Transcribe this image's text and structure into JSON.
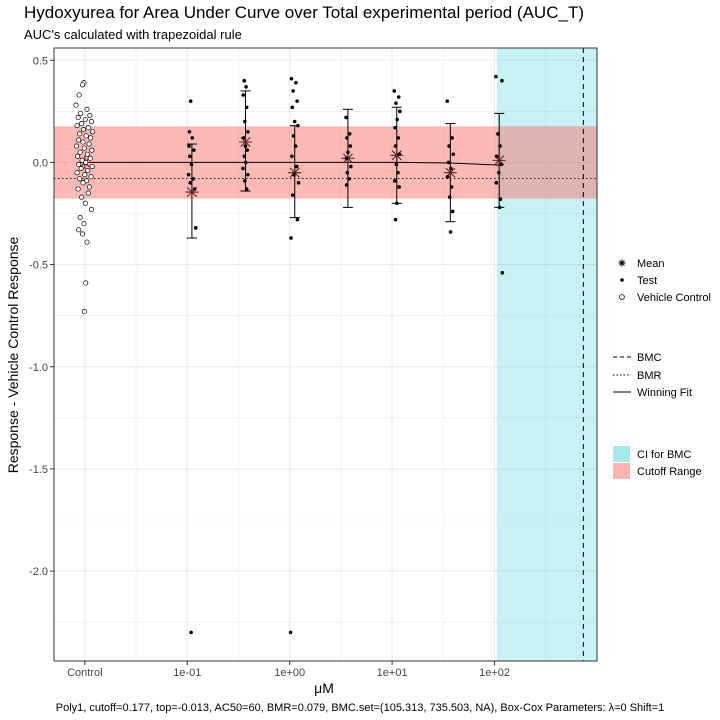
{
  "chart_data": {
    "type": "scatter",
    "title": "Hydoxyurea for Area Under Curve over Total experimental period (AUC_T)",
    "subtitle": "AUC's calculated with trapezoidal rule",
    "xlabel": "μM",
    "ylabel": "Response - Vehicle Control Response",
    "x_scale": "log",
    "x_ticks": [
      "Control",
      "1e-01",
      "1e+00",
      "1e+01",
      "1e+02"
    ],
    "x_tick_values": [
      0.01,
      0.1,
      1,
      10,
      100
    ],
    "xlim": [
      0.005,
      1000
    ],
    "y_ticks": [
      "0.5",
      "0.0",
      "-0.5",
      "-1.0",
      "-1.5",
      "-2.0"
    ],
    "y_tick_values": [
      0.5,
      0.0,
      -0.5,
      -1.0,
      -1.5,
      -2.0
    ],
    "ylim": [
      -2.44,
      0.56
    ],
    "grid": true,
    "cutoff_range": [
      -0.177,
      0.177
    ],
    "bmr": -0.079,
    "bmc": 735.503,
    "ci_bmc": [
      105.313,
      1000
    ],
    "winning_fit": {
      "x": [
        0.01,
        0.1,
        0.37,
        1.37,
        4.1,
        12.3,
        37,
        111
      ],
      "y": [
        0.0,
        0.0,
        0.0,
        0.0,
        0.0,
        0.0,
        -0.003,
        -0.013
      ]
    },
    "series": [
      {
        "name": "Mean",
        "points": [
          {
            "x": 0.01,
            "y": 0.0
          },
          {
            "x": 0.111,
            "y": -0.145
          },
          {
            "x": 0.37,
            "y": 0.1
          },
          {
            "x": 1.12,
            "y": -0.05
          },
          {
            "x": 3.7,
            "y": 0.02
          },
          {
            "x": 11.1,
            "y": 0.035
          },
          {
            "x": 37,
            "y": -0.05
          },
          {
            "x": 111,
            "y": 0.01
          }
        ],
        "error_bars": [
          {
            "x": 0.111,
            "low": -0.37,
            "high": 0.09
          },
          {
            "x": 0.37,
            "low": -0.14,
            "high": 0.35
          },
          {
            "x": 1.12,
            "low": -0.27,
            "high": 0.18
          },
          {
            "x": 3.7,
            "low": -0.22,
            "high": 0.26
          },
          {
            "x": 11.1,
            "low": -0.2,
            "high": 0.27
          },
          {
            "x": 37,
            "low": -0.29,
            "high": 0.19
          },
          {
            "x": 111,
            "low": -0.22,
            "high": 0.24
          }
        ]
      },
      {
        "name": "Test",
        "points": [
          {
            "x": 0.108,
            "y": 0.3
          },
          {
            "x": 0.105,
            "y": 0.15
          },
          {
            "x": 0.112,
            "y": 0.12
          },
          {
            "x": 0.104,
            "y": 0.08
          },
          {
            "x": 0.116,
            "y": 0.06
          },
          {
            "x": 0.106,
            "y": 0.03
          },
          {
            "x": 0.11,
            "y": -0.01
          },
          {
            "x": 0.103,
            "y": -0.06
          },
          {
            "x": 0.114,
            "y": -0.08
          },
          {
            "x": 0.107,
            "y": -0.1
          },
          {
            "x": 0.118,
            "y": -0.13
          },
          {
            "x": 0.121,
            "y": -0.32
          },
          {
            "x": 0.109,
            "y": -2.3
          },
          {
            "x": 0.36,
            "y": 0.4
          },
          {
            "x": 0.375,
            "y": 0.37
          },
          {
            "x": 0.352,
            "y": 0.33
          },
          {
            "x": 0.38,
            "y": 0.27
          },
          {
            "x": 0.365,
            "y": 0.2
          },
          {
            "x": 0.39,
            "y": 0.15
          },
          {
            "x": 0.355,
            "y": 0.12
          },
          {
            "x": 0.37,
            "y": 0.08
          },
          {
            "x": 0.385,
            "y": 0.06
          },
          {
            "x": 0.36,
            "y": 0.03
          },
          {
            "x": 0.372,
            "y": 0.0
          },
          {
            "x": 0.35,
            "y": -0.03
          },
          {
            "x": 0.39,
            "y": -0.06
          },
          {
            "x": 0.365,
            "y": -0.09
          },
          {
            "x": 0.38,
            "y": -0.13
          },
          {
            "x": 1.04,
            "y": 0.41
          },
          {
            "x": 1.15,
            "y": 0.39
          },
          {
            "x": 1.08,
            "y": 0.35
          },
          {
            "x": 1.18,
            "y": 0.3
          },
          {
            "x": 1.06,
            "y": 0.27
          },
          {
            "x": 1.12,
            "y": 0.2
          },
          {
            "x": 1.2,
            "y": 0.18
          },
          {
            "x": 1.09,
            "y": 0.13
          },
          {
            "x": 1.14,
            "y": 0.08
          },
          {
            "x": 1.05,
            "y": 0.03
          },
          {
            "x": 1.17,
            "y": -0.02
          },
          {
            "x": 1.1,
            "y": -0.06
          },
          {
            "x": 1.22,
            "y": -0.1
          },
          {
            "x": 1.07,
            "y": -0.16
          },
          {
            "x": 1.19,
            "y": -0.28
          },
          {
            "x": 1.03,
            "y": -0.37
          },
          {
            "x": 1.02,
            "y": -2.3
          },
          {
            "x": 3.55,
            "y": 0.22
          },
          {
            "x": 3.85,
            "y": 0.14
          },
          {
            "x": 3.62,
            "y": 0.12
          },
          {
            "x": 3.9,
            "y": 0.08
          },
          {
            "x": 3.7,
            "y": 0.05
          },
          {
            "x": 3.58,
            "y": 0.02
          },
          {
            "x": 3.95,
            "y": -0.02
          },
          {
            "x": 3.65,
            "y": -0.05
          },
          {
            "x": 3.8,
            "y": -0.08
          },
          {
            "x": 3.6,
            "y": -0.11
          },
          {
            "x": 10.5,
            "y": 0.35
          },
          {
            "x": 11.6,
            "y": 0.32
          },
          {
            "x": 10.9,
            "y": 0.29
          },
          {
            "x": 11.9,
            "y": 0.25
          },
          {
            "x": 11.2,
            "y": 0.21
          },
          {
            "x": 10.7,
            "y": 0.17
          },
          {
            "x": 11.5,
            "y": 0.12
          },
          {
            "x": 10.8,
            "y": 0.08
          },
          {
            "x": 11.8,
            "y": 0.04
          },
          {
            "x": 11.0,
            "y": -0.01
          },
          {
            "x": 11.4,
            "y": -0.05
          },
          {
            "x": 10.6,
            "y": -0.09
          },
          {
            "x": 11.7,
            "y": -0.12
          },
          {
            "x": 11.1,
            "y": -0.2
          },
          {
            "x": 10.8,
            "y": -0.28
          },
          {
            "x": 34.5,
            "y": 0.3
          },
          {
            "x": 38.5,
            "y": 0.12
          },
          {
            "x": 36,
            "y": 0.08
          },
          {
            "x": 39.5,
            "y": 0.04
          },
          {
            "x": 35.5,
            "y": 0.0
          },
          {
            "x": 37.5,
            "y": -0.03
          },
          {
            "x": 34.8,
            "y": -0.07
          },
          {
            "x": 38,
            "y": -0.12
          },
          {
            "x": 36.5,
            "y": -0.17
          },
          {
            "x": 39,
            "y": -0.24
          },
          {
            "x": 37.2,
            "y": -0.34
          },
          {
            "x": 103,
            "y": 0.42
          },
          {
            "x": 118,
            "y": 0.4
          },
          {
            "x": 108,
            "y": 0.14
          },
          {
            "x": 113,
            "y": 0.08
          },
          {
            "x": 105,
            "y": 0.03
          },
          {
            "x": 116,
            "y": -0.01
          },
          {
            "x": 110,
            "y": -0.05
          },
          {
            "x": 104,
            "y": -0.1
          },
          {
            "x": 114,
            "y": -0.18
          },
          {
            "x": 112,
            "y": -0.22
          },
          {
            "x": 119,
            "y": -0.54
          }
        ]
      },
      {
        "name": "Vehicle Control",
        "points": [
          {
            "x": 0.0098,
            "y": 0.39
          },
          {
            "x": 0.0095,
            "y": 0.38
          },
          {
            "x": 0.0088,
            "y": 0.33
          },
          {
            "x": 0.0082,
            "y": 0.28
          },
          {
            "x": 0.0105,
            "y": 0.26
          },
          {
            "x": 0.0091,
            "y": 0.24
          },
          {
            "x": 0.0112,
            "y": 0.23
          },
          {
            "x": 0.0086,
            "y": 0.22
          },
          {
            "x": 0.0101,
            "y": 0.21
          },
          {
            "x": 0.0116,
            "y": 0.2
          },
          {
            "x": 0.0093,
            "y": 0.19
          },
          {
            "x": 0.0084,
            "y": 0.18
          },
          {
            "x": 0.0108,
            "y": 0.17
          },
          {
            "x": 0.0097,
            "y": 0.16
          },
          {
            "x": 0.0119,
            "y": 0.15
          },
          {
            "x": 0.0089,
            "y": 0.14
          },
          {
            "x": 0.0103,
            "y": 0.13
          },
          {
            "x": 0.0114,
            "y": 0.12
          },
          {
            "x": 0.0087,
            "y": 0.11
          },
          {
            "x": 0.0096,
            "y": 0.1
          },
          {
            "x": 0.011,
            "y": 0.09
          },
          {
            "x": 0.0083,
            "y": 0.08
          },
          {
            "x": 0.0099,
            "y": 0.07
          },
          {
            "x": 0.0117,
            "y": 0.06
          },
          {
            "x": 0.009,
            "y": 0.05
          },
          {
            "x": 0.0106,
            "y": 0.04
          },
          {
            "x": 0.0085,
            "y": 0.03
          },
          {
            "x": 0.0113,
            "y": 0.02
          },
          {
            "x": 0.0094,
            "y": 0.01
          },
          {
            "x": 0.0102,
            "y": 0.0
          },
          {
            "x": 0.0087,
            "y": -0.01
          },
          {
            "x": 0.0118,
            "y": -0.02
          },
          {
            "x": 0.0092,
            "y": -0.03
          },
          {
            "x": 0.0107,
            "y": -0.04
          },
          {
            "x": 0.0084,
            "y": -0.05
          },
          {
            "x": 0.01,
            "y": -0.06
          },
          {
            "x": 0.0115,
            "y": -0.07
          },
          {
            "x": 0.0089,
            "y": -0.08
          },
          {
            "x": 0.0104,
            "y": -0.09
          },
          {
            "x": 0.0096,
            "y": -0.1
          },
          {
            "x": 0.0111,
            "y": -0.12
          },
          {
            "x": 0.0086,
            "y": -0.13
          },
          {
            "x": 0.0108,
            "y": -0.15
          },
          {
            "x": 0.0093,
            "y": -0.17
          },
          {
            "x": 0.0101,
            "y": -0.2
          },
          {
            "x": 0.0116,
            "y": -0.23
          },
          {
            "x": 0.009,
            "y": -0.27
          },
          {
            "x": 0.0098,
            "y": -0.3
          },
          {
            "x": 0.0087,
            "y": -0.33
          },
          {
            "x": 0.0095,
            "y": -0.35
          },
          {
            "x": 0.0105,
            "y": -0.39
          },
          {
            "x": 0.0102,
            "y": -0.59
          },
          {
            "x": 0.0099,
            "y": -0.73
          }
        ]
      }
    ],
    "legend_points": [
      "Mean",
      "Test",
      "Vehicle Control"
    ],
    "legend_lines": [
      "BMC",
      "BMR",
      "Winning Fit"
    ],
    "legend_fills": [
      {
        "label": "CI for BMC",
        "color": "#00bfc4"
      },
      {
        "label": "Cutoff Range",
        "color": "#f8766d"
      }
    ],
    "legend_position": "right",
    "caption": "Poly1, cutoff=0.177, top=-0.013, AC50=60, BMR=0.079, BMC.set=(105.313, 735.503, NA), Box-Cox Parameters: λ=0 Shift=1"
  },
  "colors": {
    "ci_fill": "#00bfc4",
    "cutoff_fill": "#f8766d",
    "grid": "#ebebeb",
    "panel_border": "#333333",
    "mean_marker": "#5a2020"
  }
}
